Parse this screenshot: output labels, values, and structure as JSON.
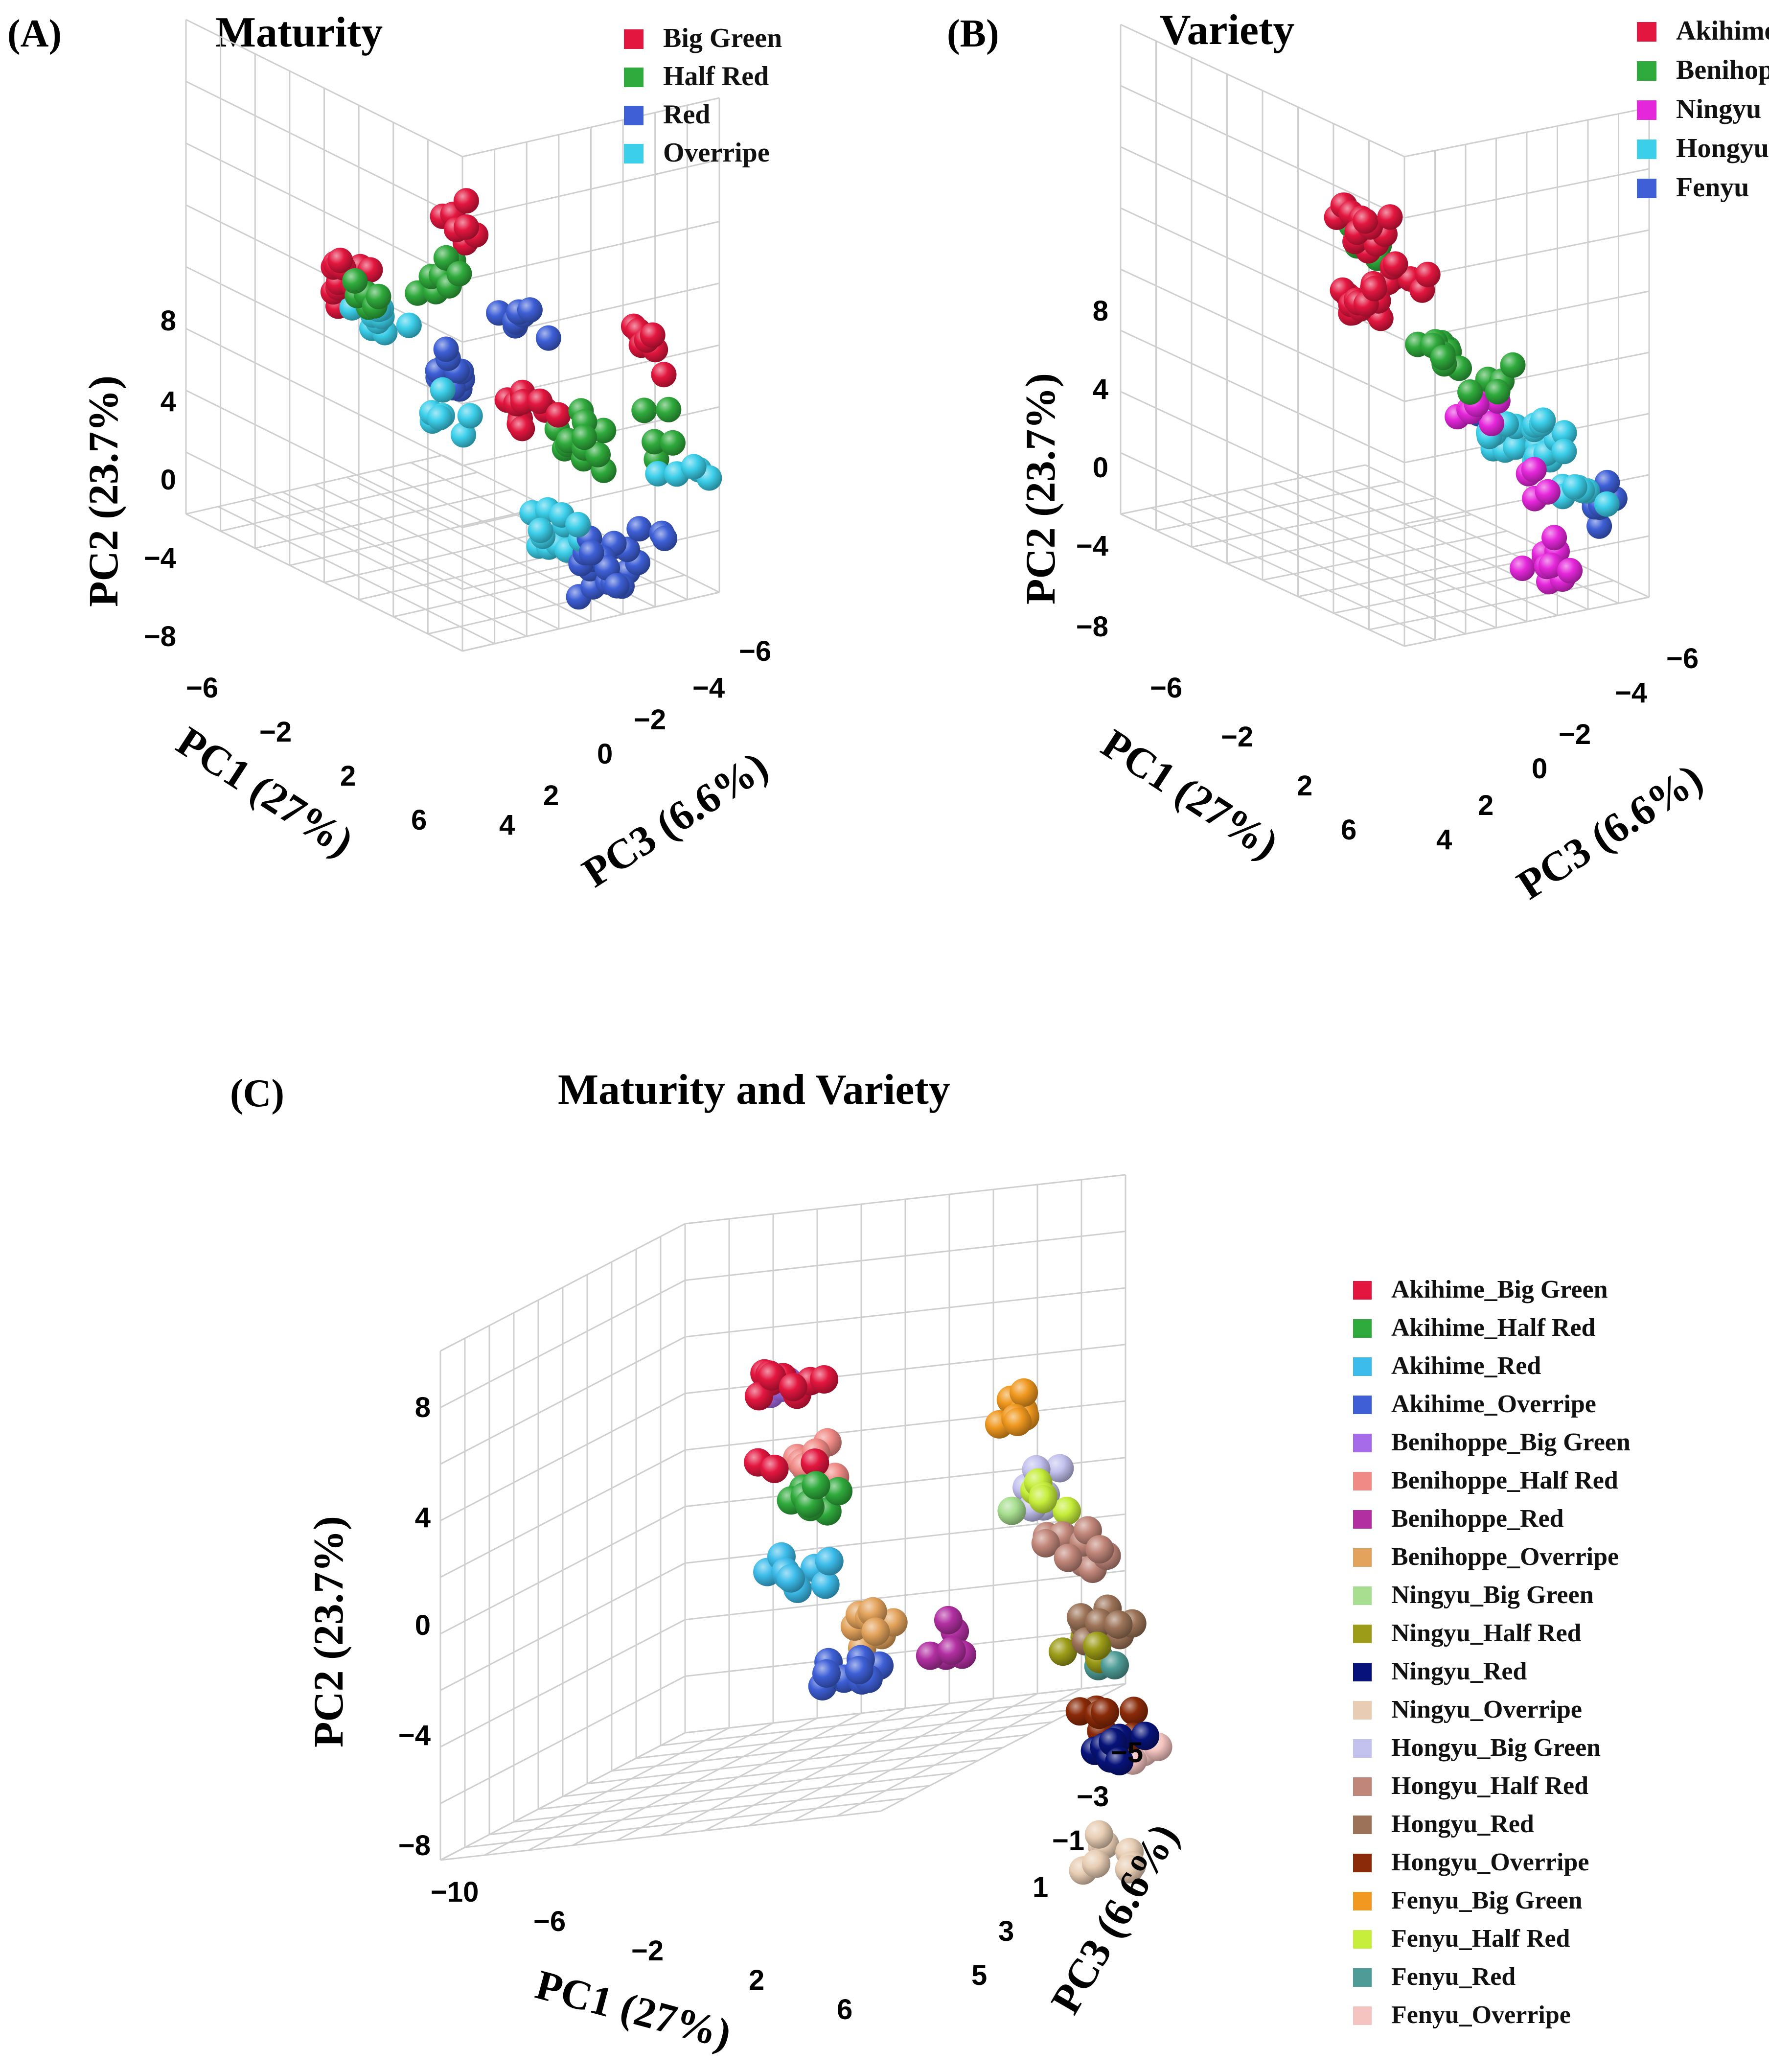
{
  "chart_data": [
    {
      "type": "scatter",
      "panel_label": "(A)",
      "title": "Maturity",
      "projection": "3d",
      "xlabel": "PC1 (27%)",
      "ylabel": "PC2 (23.7%)",
      "zlabel": "PC3 (6.6%)",
      "x_ticks": [
        "−6",
        "−2",
        "2",
        "6"
      ],
      "y_ticks": [
        "8",
        "4",
        "0",
        "−4",
        "−8"
      ],
      "z_ticks": [
        "−6",
        "−4",
        "−2",
        "0",
        "2",
        "4"
      ],
      "xlim": [
        -8,
        8
      ],
      "ylim": [
        -8,
        10
      ],
      "zlim": [
        -6,
        5
      ],
      "legend": [
        {
          "name": "Big Green",
          "color": "#E3163F"
        },
        {
          "name": "Half Red",
          "color": "#2FAA3C"
        },
        {
          "name": "Red",
          "color": "#3E5FD6"
        },
        {
          "name": "Overripe",
          "color": "#3CCFEA"
        }
      ],
      "series": [
        {
          "name": "Big Green",
          "clusters": [
            {
              "center": [
                -6,
                5,
                4
              ],
              "n": 8
            },
            {
              "center": [
                -4,
                9,
                -3
              ],
              "n": 12
            },
            {
              "center": [
                6,
                8,
                3
              ],
              "n": 7
            },
            {
              "center": [
                0,
                1,
                2
              ],
              "n": 12
            }
          ]
        },
        {
          "name": "Half Red",
          "clusters": [
            {
              "center": [
                -6,
                3,
                3
              ],
              "n": 8
            },
            {
              "center": [
                -4,
                7,
                -2
              ],
              "n": 6
            },
            {
              "center": [
                2,
                0,
                3
              ],
              "n": 12
            },
            {
              "center": [
                5,
                2,
                4
              ],
              "n": 5
            }
          ]
        },
        {
          "name": "Red",
          "clusters": [
            {
              "center": [
                -6,
                -2,
                3
              ],
              "n": 10
            },
            {
              "center": [
                -3,
                2,
                4
              ],
              "n": 8
            },
            {
              "center": [
                1,
                -8,
                4
              ],
              "n": 14
            },
            {
              "center": [
                5,
                -3,
                3
              ],
              "n": 8
            }
          ]
        },
        {
          "name": "Overripe",
          "clusters": [
            {
              "center": [
                -6,
                -4,
                3
              ],
              "n": 7
            },
            {
              "center": [
                -2,
                8,
                -3
              ],
              "n": 9
            },
            {
              "center": [
                1,
                -4,
                2
              ],
              "n": 8
            },
            {
              "center": [
                5,
                -1,
                5
              ],
              "n": 5
            },
            {
              "center": [
                0,
                -7,
                4
              ],
              "n": 5
            }
          ]
        }
      ]
    },
    {
      "type": "scatter",
      "panel_label": "(B)",
      "title": "Variety",
      "projection": "3d",
      "xlabel": "PC1 (27%)",
      "ylabel": "PC2 (23.7%)",
      "zlabel": "PC3 (6.6%)",
      "x_ticks": [
        "−6",
        "−2",
        "2",
        "6"
      ],
      "y_ticks": [
        "8",
        "4",
        "0",
        "−4",
        "−8"
      ],
      "z_ticks": [
        "−6",
        "−4",
        "−2",
        "0",
        "2",
        "4"
      ],
      "xlim": [
        -8,
        8
      ],
      "ylim": [
        -8,
        10
      ],
      "zlim": [
        -6,
        5
      ],
      "legend": [
        {
          "name": "Akihime",
          "color": "#E3163F"
        },
        {
          "name": "Benihoppe",
          "color": "#2FAA3C"
        },
        {
          "name": "Ningyu",
          "color": "#E527DB"
        },
        {
          "name": "Hongyu",
          "color": "#3CCFEA"
        },
        {
          "name": "Fenyu",
          "color": "#3E5FD6"
        }
      ],
      "series": [
        {
          "name": "Akihime",
          "clusters": [
            {
              "center": [
                -6,
                2,
                3
              ],
              "n": 16
            },
            {
              "center": [
                -4,
                8,
                1
              ],
              "n": 14
            },
            {
              "center": [
                -3,
                5,
                2
              ],
              "n": 8
            }
          ]
        },
        {
          "name": "Benihoppe",
          "clusters": [
            {
              "center": [
                -1,
                10,
                -2
              ],
              "n": 9
            },
            {
              "center": [
                -2,
                1,
                3
              ],
              "n": 12
            },
            {
              "center": [
                0,
                0,
                3
              ],
              "n": 5
            }
          ]
        },
        {
          "name": "Ningyu",
          "clusters": [
            {
              "center": [
                1,
                0,
                2
              ],
              "n": 7
            },
            {
              "center": [
                3,
                -4,
                3
              ],
              "n": 4
            },
            {
              "center": [
                2,
                -9,
                4
              ],
              "n": 10
            }
          ]
        },
        {
          "name": "Hongyu",
          "clusters": [
            {
              "center": [
                6,
                3,
                -2
              ],
              "n": 12
            },
            {
              "center": [
                4,
                -1,
                2
              ],
              "n": 14
            },
            {
              "center": [
                5,
                -4,
                3
              ],
              "n": 7
            }
          ]
        },
        {
          "name": "Fenyu",
          "clusters": [
            {
              "center": [
                7,
                6,
                -4
              ],
              "n": 6
            },
            {
              "center": [
                7,
                -3,
                2
              ],
              "n": 9
            }
          ]
        }
      ]
    },
    {
      "type": "scatter",
      "panel_label": "(C)",
      "title": "Maturity and Variety",
      "projection": "3d",
      "xlabel": "PC1 (27%)",
      "ylabel": "PC2 (23.7%)",
      "zlabel": "PC3 (6.6%)",
      "x_ticks": [
        "−10",
        "−6",
        "−2",
        "2",
        "6"
      ],
      "y_ticks": [
        "8",
        "4",
        "0",
        "−4",
        "−8"
      ],
      "z_ticks": [
        "−5",
        "−3",
        "−1",
        "1",
        "3",
        "5"
      ],
      "xlim": [
        -10,
        8
      ],
      "ylim": [
        -8,
        10
      ],
      "zlim": [
        -5,
        5
      ],
      "legend": [
        {
          "name": "Akihime_Big Green",
          "color": "#E3163F"
        },
        {
          "name": "Akihime_Half Red",
          "color": "#2FAA3C"
        },
        {
          "name": "Akihime_Red",
          "color": "#3CBCEA"
        },
        {
          "name": "Akihime_Overripe",
          "color": "#3E5FD6"
        },
        {
          "name": "Benihoppe_Big Green",
          "color": "#A66BE8"
        },
        {
          "name": "Benihoppe_Half Red",
          "color": "#F08A86"
        },
        {
          "name": "Benihoppe_Red",
          "color": "#B22FA2"
        },
        {
          "name": "Benihoppe_Overripe",
          "color": "#E3A35C"
        },
        {
          "name": "Ningyu_Big Green",
          "color": "#A7DE8F"
        },
        {
          "name": "Ningyu_Half Red",
          "color": "#9C9C18"
        },
        {
          "name": "Ningyu_Red",
          "color": "#07137A"
        },
        {
          "name": "Ningyu_Overripe",
          "color": "#E8CDB4"
        },
        {
          "name": "Hongyu_Big Green",
          "color": "#C3C1EE"
        },
        {
          "name": "Hongyu_Half Red",
          "color": "#C1867A"
        },
        {
          "name": "Hongyu_Red",
          "color": "#9C7358"
        },
        {
          "name": "Hongyu_Overripe",
          "color": "#8A2A08"
        },
        {
          "name": "Fenyu_Big Green",
          "color": "#F0981F"
        },
        {
          "name": "Fenyu_Half Red",
          "color": "#C6EE3B"
        },
        {
          "name": "Fenyu_Red",
          "color": "#4E9C97"
        },
        {
          "name": "Fenyu_Overripe",
          "color": "#F5C4C0"
        }
      ],
      "series": [
        {
          "name": "Akihime_Big Green",
          "clusters": [
            {
              "center": [
                -5,
                9,
                -1
              ],
              "n": 10
            },
            {
              "center": [
                -7,
                5,
                1
              ],
              "n": 3
            }
          ]
        },
        {
          "name": "Akihime_Half Red",
          "clusters": [
            {
              "center": [
                -6,
                4,
                1
              ],
              "n": 8
            }
          ]
        },
        {
          "name": "Akihime_Red",
          "clusters": [
            {
              "center": [
                -8,
                1,
                2
              ],
              "n": 9
            }
          ]
        },
        {
          "name": "Akihime_Overripe",
          "clusters": [
            {
              "center": [
                -7,
                -3,
                3
              ],
              "n": 8
            },
            {
              "center": [
                -10,
                -4,
                4
              ],
              "n": 1
            }
          ]
        },
        {
          "name": "Benihoppe_Big Green",
          "clusters": [
            {
              "center": [
                -4,
                9,
                -2
              ],
              "n": 4
            }
          ]
        },
        {
          "name": "Benihoppe_Half Red",
          "clusters": [
            {
              "center": [
                -4,
                6,
                -1
              ],
              "n": 7
            }
          ]
        },
        {
          "name": "Benihoppe_Red",
          "clusters": [
            {
              "center": [
                -3,
                -1,
                2
              ],
              "n": 6
            }
          ]
        },
        {
          "name": "Benihoppe_Overripe",
          "clusters": [
            {
              "center": [
                -5,
                -1,
                2
              ],
              "n": 10
            }
          ]
        },
        {
          "name": "Ningyu_Big Green",
          "clusters": [
            {
              "center": [
                2,
                4,
                0
              ],
              "n": 1
            }
          ]
        },
        {
          "name": "Ningyu_Half Red",
          "clusters": [
            {
              "center": [
                3,
                -1,
                1
              ],
              "n": 4
            }
          ]
        },
        {
          "name": "Ningyu_Red",
          "clusters": [
            {
              "center": [
                2,
                -5,
                3
              ],
              "n": 8
            }
          ]
        },
        {
          "name": "Ningyu_Overripe",
          "clusters": [
            {
              "center": [
                2,
                -9,
                3
              ],
              "n": 8
            }
          ]
        },
        {
          "name": "Hongyu_Big Green",
          "clusters": [
            {
              "center": [
                6,
                6,
                -3
              ],
              "n": 6
            }
          ]
        },
        {
          "name": "Hongyu_Half Red",
          "clusters": [
            {
              "center": [
                4,
                3,
                0
              ],
              "n": 10
            }
          ]
        },
        {
          "name": "Hongyu_Red",
          "clusters": [
            {
              "center": [
                4,
                0,
                1
              ],
              "n": 9
            }
          ]
        },
        {
          "name": "Hongyu_Overripe",
          "clusters": [
            {
              "center": [
                3,
                -4,
                2
              ],
              "n": 8
            }
          ]
        },
        {
          "name": "Fenyu_Big Green",
          "clusters": [
            {
              "center": [
                6,
                9,
                -4
              ],
              "n": 7
            }
          ]
        },
        {
          "name": "Fenyu_Half Red",
          "clusters": [
            {
              "center": [
                4,
                5,
                -1
              ],
              "n": 5
            }
          ]
        },
        {
          "name": "Fenyu_Red",
          "clusters": [
            {
              "center": [
                4,
                -1,
                1
              ],
              "n": 3
            }
          ]
        },
        {
          "name": "Fenyu_Overripe",
          "clusters": [
            {
              "center": [
                4,
                -5,
                2
              ],
              "n": 5
            }
          ]
        }
      ]
    }
  ]
}
